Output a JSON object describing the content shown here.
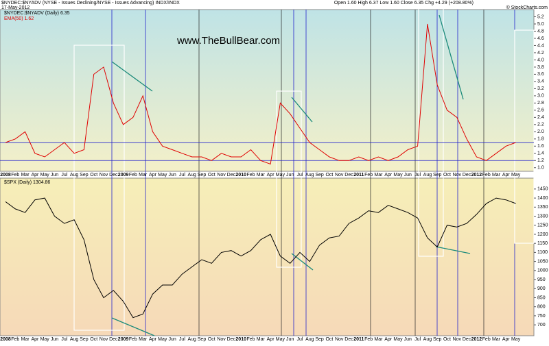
{
  "header": {
    "title": "$NYDEC:$NYADV (NYSE - Issues Declining/NYSE - Issues Advancing) INDX/INDX",
    "date": "17-May-2012",
    "quote": "Open 1.60  High 6.37  Low 1.60  Close 6.35  Chg +4.29 (+208.80%)",
    "credit": "© StockCharts.com",
    "watermark": "www.TheBullBear.com"
  },
  "chart_data": [
    {
      "type": "line",
      "legend_extra": "EMA(50) 1.62",
      "categories": [
        "2008",
        "Feb",
        "Mar",
        "Apr",
        "May",
        "Jun",
        "Jul",
        "Aug",
        "Sep",
        "Oct",
        "Nov",
        "Dec",
        "2009",
        "Feb",
        "Mar",
        "Apr",
        "May",
        "Jun",
        "Jul",
        "Aug",
        "Sep",
        "Oct",
        "Nov",
        "Dec",
        "2010",
        "Feb",
        "Mar",
        "Apr",
        "May",
        "Jun",
        "Jul",
        "Aug",
        "Sep",
        "Oct",
        "Nov",
        "Dec",
        "2011",
        "Feb",
        "Mar",
        "Apr",
        "May",
        "Jun",
        "Jul",
        "Aug",
        "Sep",
        "Oct",
        "Nov",
        "Dec",
        "2012",
        "Feb",
        "Mar",
        "Apr",
        "May"
      ],
      "series": [
        {
          "name": "$NYDEC:$NYADV (Daily) 6.35",
          "color": "#e00000",
          "values": [
            1.7,
            1.8,
            2.0,
            1.4,
            1.3,
            1.5,
            1.7,
            1.4,
            1.5,
            3.6,
            3.8,
            2.8,
            2.2,
            2.4,
            3.0,
            2.0,
            1.6,
            1.5,
            1.4,
            1.3,
            1.3,
            1.2,
            1.4,
            1.3,
            1.3,
            1.5,
            1.2,
            1.1,
            2.8,
            2.5,
            2.1,
            1.7,
            1.5,
            1.3,
            1.2,
            1.2,
            1.3,
            1.2,
            1.3,
            1.2,
            1.3,
            1.5,
            1.6,
            5.0,
            3.3,
            2.6,
            2.4,
            1.8,
            1.3,
            1.2,
            1.4,
            1.6,
            1.7
          ]
        }
      ],
      "hlines": [
        1.7,
        1.2
      ],
      "ylim": [
        0.9,
        5.4
      ],
      "yticks": [
        {
          "value": 1.0,
          "label": "1.0"
        },
        {
          "value": 1.2,
          "label": "1.2"
        },
        {
          "value": 1.4,
          "label": "1.4"
        },
        {
          "value": 1.6,
          "label": "1.6"
        },
        {
          "value": 1.8,
          "label": "1.8"
        },
        {
          "value": 2.0,
          "label": "2.0"
        },
        {
          "value": 2.2,
          "label": "2.2"
        },
        {
          "value": 2.4,
          "label": "2.4"
        },
        {
          "value": 2.6,
          "label": "2.6"
        },
        {
          "value": 2.8,
          "label": "2.8"
        },
        {
          "value": 3.0,
          "label": "3.0"
        },
        {
          "value": 3.2,
          "label": "3.2"
        },
        {
          "value": 3.4,
          "label": "3.4"
        },
        {
          "value": 3.6,
          "label": "3.6"
        },
        {
          "value": 3.8,
          "label": "3.8"
        },
        {
          "value": 4.0,
          "label": "4.0"
        },
        {
          "value": 4.2,
          "label": "4.2"
        },
        {
          "value": 4.4,
          "label": "4.4"
        },
        {
          "value": 4.6,
          "label": "4.6"
        },
        {
          "value": 4.8,
          "label": "4.8"
        },
        {
          "value": 5.0,
          "label": "5.0"
        },
        {
          "value": 5.2,
          "label": "5.2"
        }
      ]
    },
    {
      "type": "line",
      "categories": [
        "2008",
        "Feb",
        "Mar",
        "Apr",
        "May",
        "Jun",
        "Jul",
        "Aug",
        "Sep",
        "Oct",
        "Nov",
        "Dec",
        "2009",
        "Feb",
        "Mar",
        "Apr",
        "May",
        "Jun",
        "Jul",
        "Aug",
        "Sep",
        "Oct",
        "Nov",
        "Dec",
        "2010",
        "Feb",
        "Mar",
        "Apr",
        "May",
        "Jun",
        "Jul",
        "Aug",
        "Sep",
        "Oct",
        "Nov",
        "Dec",
        "2011",
        "Feb",
        "Mar",
        "Apr",
        "May",
        "Jun",
        "Jul",
        "Aug",
        "Sep",
        "Oct",
        "Nov",
        "Dec",
        "2012",
        "Feb",
        "Mar",
        "Apr",
        "May"
      ],
      "series": [
        {
          "name": "$SPX (Daily) 1304.86",
          "color": "#000000",
          "values": [
            1380,
            1340,
            1320,
            1390,
            1400,
            1300,
            1260,
            1280,
            1170,
            950,
            850,
            890,
            830,
            740,
            760,
            870,
            920,
            920,
            980,
            1020,
            1060,
            1040,
            1100,
            1110,
            1080,
            1110,
            1170,
            1200,
            1080,
            1040,
            1100,
            1050,
            1140,
            1180,
            1190,
            1260,
            1290,
            1330,
            1320,
            1360,
            1340,
            1320,
            1290,
            1180,
            1130,
            1250,
            1240,
            1260,
            1310,
            1370,
            1400,
            1390,
            1370
          ]
        }
      ],
      "ylim": [
        640,
        1510
      ],
      "yticks": [
        700,
        750,
        800,
        850,
        900,
        950,
        1000,
        1050,
        1100,
        1150,
        1200,
        1250,
        1300,
        1350,
        1400,
        1450
      ]
    }
  ]
}
